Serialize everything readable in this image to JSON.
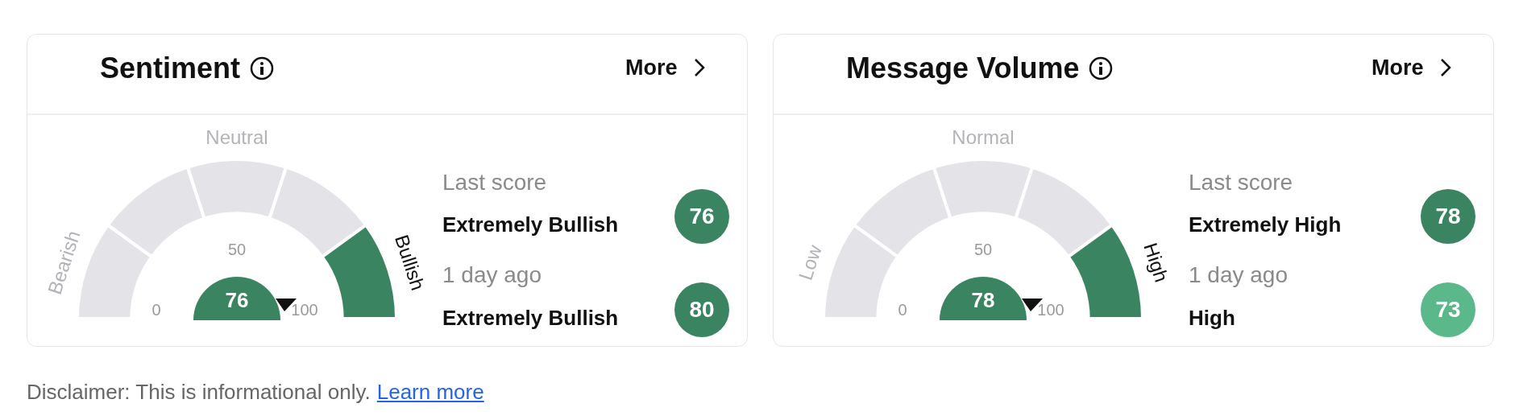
{
  "chart_data": [
    {
      "type": "donut",
      "title": "Sentiment",
      "categories": [
        "Bearish",
        null,
        "Neutral",
        null,
        "Bullish"
      ],
      "values": [
        20,
        20,
        20,
        20,
        20
      ],
      "colors": [
        "#e4e4e8",
        "#e4e4e8",
        "#e4e4e8",
        "#e4e4e8",
        "#3a8461"
      ],
      "annotations": [
        "More",
        "0",
        "50",
        "100",
        "76",
        "Last score",
        "Extremely Bullish",
        "76",
        "1 day ago",
        "Extremely Bullish",
        "80"
      ]
    },
    {
      "type": "donut",
      "title": "Message Volume",
      "categories": [
        "Low",
        null,
        "Normal",
        null,
        "High"
      ],
      "values": [
        20,
        20,
        20,
        20,
        20
      ],
      "colors": [
        "#e4e4e8",
        "#e4e4e8",
        "#e4e4e8",
        "#e4e4e8",
        "#3a8461"
      ],
      "annotations": [
        "More",
        "0",
        "50",
        "100",
        "78",
        "Last score",
        "Extremely High",
        "78",
        "1 day ago",
        "High",
        "73",
        "Disclaimer: This is informational only.",
        "Learn more"
      ]
    }
  ]
}
